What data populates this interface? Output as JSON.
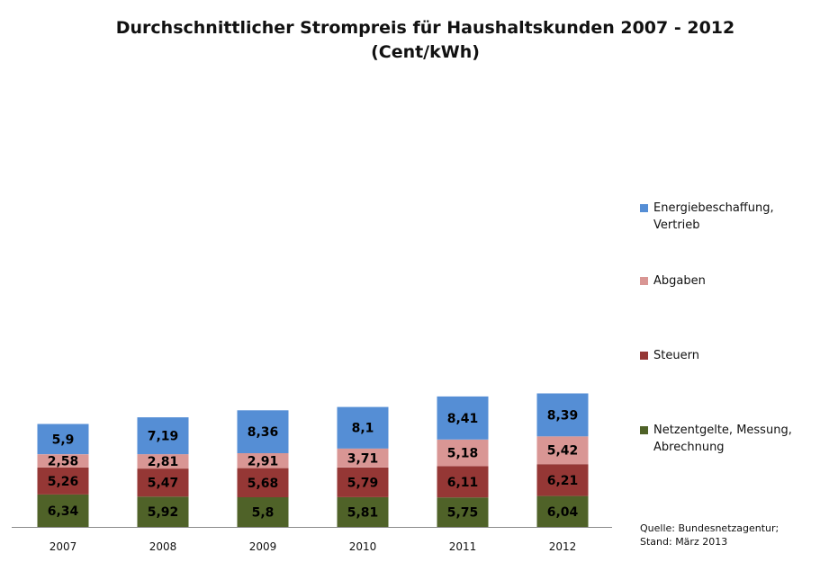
{
  "title_line1": "Durchschnittlicher Strompreis für Haushaltskunden 2007 - 2012",
  "title_line2": "(Cent/kWh)",
  "source_line1": "Quelle: Bundesnetzagentur;",
  "source_line2": "Stand: März 2013",
  "chart_data": {
    "type": "bar",
    "stacked": true,
    "title": "Durchschnittlicher Strompreis für Haushaltskunden 2007 - 2012 (Cent/kWh)",
    "categories": [
      "2007",
      "2008",
      "2009",
      "2010",
      "2011",
      "2012"
    ],
    "series": [
      {
        "name": "Netzentgelte, Messung, Abrechnung",
        "color": "#4f6228",
        "values": [
          6.34,
          5.92,
          5.8,
          5.81,
          5.75,
          6.04
        ],
        "labels": [
          "6,34",
          "5,92",
          "5,8",
          "5,81",
          "5,75",
          "6,04"
        ]
      },
      {
        "name": "Steuern",
        "color": "#953735",
        "values": [
          5.26,
          5.47,
          5.68,
          5.79,
          6.11,
          6.21
        ],
        "labels": [
          "5,26",
          "5,47",
          "5,68",
          "5,79",
          "6,11",
          "6,21"
        ]
      },
      {
        "name": "Abgaben",
        "color": "#d99694",
        "values": [
          2.58,
          2.81,
          2.91,
          3.71,
          5.18,
          5.42
        ],
        "labels": [
          "2,58",
          "2,81",
          "2,91",
          "3,71",
          "5,18",
          "5,42"
        ]
      },
      {
        "name": "Energiebeschaffung, Vertrieb",
        "color": "#558ed5",
        "values": [
          5.9,
          7.19,
          8.36,
          8.1,
          8.41,
          8.39
        ],
        "labels": [
          "5,9",
          "7,19",
          "8,36",
          "8,1",
          "8,41",
          "8,39"
        ]
      }
    ],
    "legend": {
      "position": "right",
      "order": [
        {
          "lines": [
            "Energiebeschaffung,",
            "Vertrieb"
          ],
          "color": "#558ed5"
        },
        {
          "lines": [
            "Abgaben"
          ],
          "color": "#d99694"
        },
        {
          "lines": [
            "Steuern"
          ],
          "color": "#953735"
        },
        {
          "lines": [
            "Netzentgelte, Messung,",
            "Abrechnung"
          ],
          "color": "#4f6228"
        }
      ]
    },
    "y_axis_visible": false,
    "grid": false
  }
}
